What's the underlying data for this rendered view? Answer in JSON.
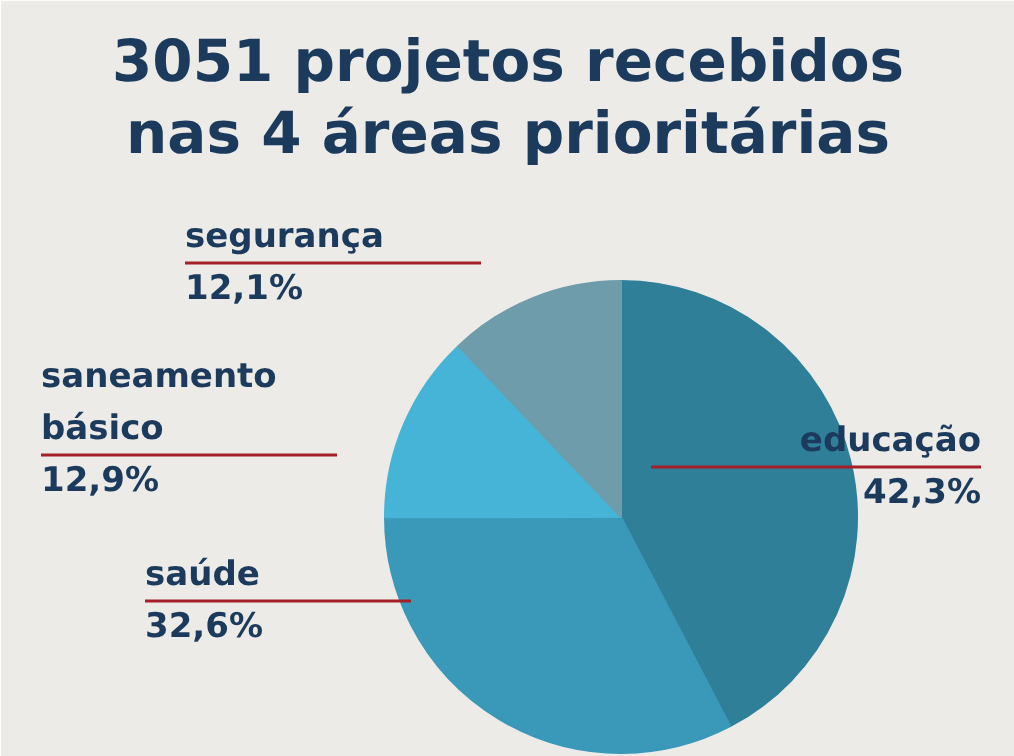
{
  "chart_data": {
    "type": "pie",
    "title": "3051 projetos recebidos nas 4 áreas prioritárias",
    "categories": [
      "educação",
      "saúde",
      "saneamento básico",
      "segurança"
    ],
    "values": [
      42.3,
      32.6,
      12.9,
      12.1
    ],
    "colors": [
      "#2f7f98",
      "#3a98b9",
      "#46b4d6",
      "#6e9caa"
    ],
    "value_labels": [
      "42,3%",
      "32,6%",
      "12,9%",
      "12,1%"
    ]
  }
}
